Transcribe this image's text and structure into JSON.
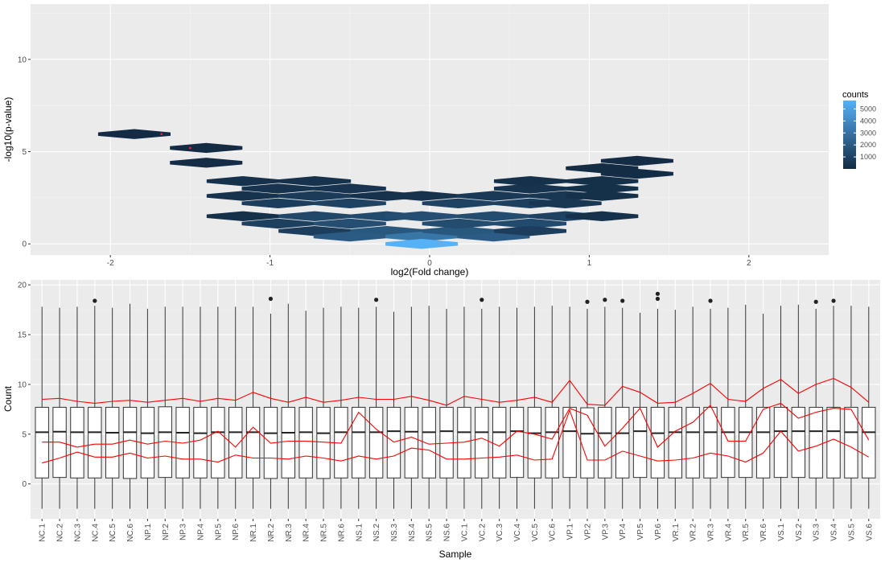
{
  "chart_data": [
    {
      "type": "heatmap",
      "xlabel": "log2(Fold change)",
      "ylabel": "-log10(p-value)",
      "xlim": [
        -2.5,
        2.5
      ],
      "ylim": [
        -0.6,
        13
      ],
      "x_ticks": [
        -2,
        -1,
        0,
        1,
        2
      ],
      "y_ticks": [
        0,
        5,
        10
      ],
      "grid": true,
      "legend": {
        "title": "counts",
        "position": "right",
        "breaks": [
          1000,
          2000,
          3000,
          4000,
          5000
        ],
        "colors": {
          "low": "#132b43",
          "high": "#56b1f7"
        },
        "range": [
          1,
          5700
        ]
      },
      "hex_cells": [
        {
          "x": -1.85,
          "y": 5.95,
          "count": 20
        },
        {
          "x": -1.4,
          "y": 5.2,
          "count": 40
        },
        {
          "x": -1.4,
          "y": 4.4,
          "count": 60
        },
        {
          "x": -1.17,
          "y": 3.4,
          "count": 250
        },
        {
          "x": -0.95,
          "y": 3.0,
          "count": 350
        },
        {
          "x": -0.72,
          "y": 3.4,
          "count": 300
        },
        {
          "x": -0.5,
          "y": 3.0,
          "count": 400
        },
        {
          "x": -1.17,
          "y": 2.6,
          "count": 300
        },
        {
          "x": -0.72,
          "y": 2.6,
          "count": 700
        },
        {
          "x": -0.27,
          "y": 2.6,
          "count": 250
        },
        {
          "x": -0.95,
          "y": 2.2,
          "count": 800
        },
        {
          "x": -0.5,
          "y": 2.2,
          "count": 1000
        },
        {
          "x": -1.17,
          "y": 1.5,
          "count": 200
        },
        {
          "x": -0.72,
          "y": 1.5,
          "count": 1200
        },
        {
          "x": -0.27,
          "y": 1.5,
          "count": 1300
        },
        {
          "x": -0.95,
          "y": 1.1,
          "count": 900
        },
        {
          "x": -0.5,
          "y": 1.1,
          "count": 1500
        },
        {
          "x": -0.72,
          "y": 0.7,
          "count": 800
        },
        {
          "x": -0.27,
          "y": 0.7,
          "count": 1900
        },
        {
          "x": -0.5,
          "y": 0.4,
          "count": 2000
        },
        {
          "x": -0.05,
          "y": 0.4,
          "count": 3200
        },
        {
          "x": 0.4,
          "y": 0.4,
          "count": 2100
        },
        {
          "x": 0.18,
          "y": 0.7,
          "count": 1900
        },
        {
          "x": -0.05,
          "y": 0.0,
          "count": 5700
        },
        {
          "x": 0.18,
          "y": 1.1,
          "count": 1400
        },
        {
          "x": 0.63,
          "y": 1.1,
          "count": 1300
        },
        {
          "x": -0.05,
          "y": 1.5,
          "count": 1500
        },
        {
          "x": 0.4,
          "y": 1.5,
          "count": 1400
        },
        {
          "x": 0.85,
          "y": 1.5,
          "count": 1000
        },
        {
          "x": 1.08,
          "y": 1.5,
          "count": 250
        },
        {
          "x": 0.63,
          "y": 0.7,
          "count": 800
        },
        {
          "x": 0.18,
          "y": 2.2,
          "count": 1000
        },
        {
          "x": 0.63,
          "y": 2.2,
          "count": 900
        },
        {
          "x": 0.85,
          "y": 2.2,
          "count": 500
        },
        {
          "x": -0.05,
          "y": 2.6,
          "count": 300
        },
        {
          "x": 0.4,
          "y": 2.6,
          "count": 600
        },
        {
          "x": 0.85,
          "y": 2.6,
          "count": 500
        },
        {
          "x": 1.08,
          "y": 2.6,
          "count": 200
        },
        {
          "x": 0.63,
          "y": 3.0,
          "count": 350
        },
        {
          "x": 1.08,
          "y": 3.0,
          "count": 200
        },
        {
          "x": 0.63,
          "y": 3.4,
          "count": 250
        },
        {
          "x": 1.08,
          "y": 3.4,
          "count": 200
        },
        {
          "x": 1.3,
          "y": 3.8,
          "count": 100
        },
        {
          "x": 1.08,
          "y": 4.1,
          "count": 80
        },
        {
          "x": 1.3,
          "y": 4.5,
          "count": 60
        }
      ],
      "highlight_points": [
        {
          "x": -1.68,
          "y": 5.95
        },
        {
          "x": -1.5,
          "y": 5.2
        }
      ]
    },
    {
      "type": "box",
      "xlabel": "Sample",
      "ylabel": "Count",
      "ylim": [
        -3.5,
        20.5
      ],
      "y_ticks": [
        0,
        5,
        10,
        15,
        20
      ],
      "grid": true,
      "categories": [
        "NC.1",
        "NC.2",
        "NC.3",
        "NC.4",
        "NC.5",
        "NC.6",
        "NP.1",
        "NP.2",
        "NP.3",
        "NP.4",
        "NP.5",
        "NP.6",
        "NR.1",
        "NR.2",
        "NR.3",
        "NR.4",
        "NR.5",
        "NR.6",
        "NS.1",
        "NS.2",
        "NS.3",
        "NS.4",
        "NS.5",
        "NS.6",
        "VC.1",
        "VC.2",
        "VC.3",
        "VC.4",
        "VC.5",
        "VC.6",
        "VP.1",
        "VP.2",
        "VP.3",
        "VP.4",
        "VP.5",
        "VP.6",
        "VR.1",
        "VR.2",
        "VR.3",
        "VR.4",
        "VR.5",
        "VR.6",
        "VS.1",
        "VS.2",
        "VS.3",
        "VS.4",
        "VS.5",
        "VS.6"
      ],
      "box": {
        "median": [
          5.2,
          5.25,
          5.2,
          5.2,
          5.15,
          5.2,
          5.1,
          5.2,
          5.15,
          5.1,
          5.2,
          5.2,
          5.2,
          5.1,
          5.15,
          5.2,
          5.1,
          5.2,
          5.2,
          5.2,
          5.3,
          5.25,
          5.2,
          5.3,
          5.2,
          5.2,
          5.2,
          5.3,
          5.1,
          5.2,
          5.3,
          5.05,
          5.1,
          5.1,
          5.3,
          5.1,
          5.2,
          5.2,
          5.2,
          5.2,
          5.2,
          5.2,
          5.3,
          5.3,
          5.3,
          5.3,
          5.2,
          5.2
        ],
        "q1": [
          0.6,
          0.65,
          0.6,
          0.6,
          0.6,
          0.55,
          0.6,
          0.65,
          0.6,
          0.6,
          0.6,
          0.6,
          0.6,
          0.55,
          0.6,
          0.6,
          0.55,
          0.6,
          0.6,
          0.6,
          0.6,
          0.6,
          0.6,
          0.6,
          0.6,
          0.6,
          0.6,
          0.65,
          0.6,
          0.6,
          0.65,
          0.6,
          0.6,
          0.6,
          0.65,
          0.6,
          0.6,
          0.6,
          0.6,
          0.65,
          0.65,
          0.6,
          0.65,
          0.65,
          0.6,
          0.6,
          0.6,
          0.6
        ],
        "q3": [
          7.7,
          7.7,
          7.7,
          7.7,
          7.7,
          7.7,
          7.7,
          7.75,
          7.7,
          7.7,
          7.7,
          7.7,
          7.7,
          7.7,
          7.7,
          7.7,
          7.7,
          7.7,
          7.7,
          7.7,
          7.7,
          7.7,
          7.7,
          7.7,
          7.7,
          7.7,
          7.7,
          7.7,
          7.7,
          7.7,
          7.7,
          7.65,
          7.7,
          7.7,
          7.7,
          7.7,
          7.7,
          7.7,
          7.7,
          7.7,
          7.7,
          7.7,
          7.7,
          7.7,
          7.7,
          7.7,
          7.7,
          7.7
        ],
        "whisker_low": [
          -2.5,
          -2.5,
          -2.5,
          -2.5,
          -2.5,
          -2.5,
          -2.5,
          -2.5,
          -2.5,
          -2.5,
          -2.5,
          -2.5,
          -2.5,
          -2.5,
          -2.5,
          -2.5,
          -2.5,
          -2.5,
          -2.5,
          -2.5,
          -2.5,
          -2.5,
          -2.5,
          -2.5,
          -2.5,
          -2.5,
          -2.5,
          -2.5,
          -2.5,
          -2.5,
          -2.5,
          -2.5,
          -2.5,
          -2.5,
          -2.5,
          -2.5,
          -2.5,
          -2.5,
          -2.5,
          -2.5,
          -2.5,
          -2.5,
          -2.5,
          -2.5,
          -2.5,
          -2.5,
          -2.5,
          -2.5
        ],
        "whisker_high": [
          17.8,
          17.7,
          17.8,
          17.9,
          17.7,
          18.1,
          17.6,
          17.8,
          17.8,
          17.8,
          17.8,
          17.8,
          17.8,
          17.1,
          18.1,
          17.4,
          17.7,
          17.8,
          17.7,
          17.8,
          17.3,
          17.8,
          17.9,
          17.6,
          17.8,
          17.6,
          17.8,
          17.7,
          17.8,
          17.9,
          17.8,
          17.6,
          17.8,
          17.7,
          17.2,
          17.6,
          17.5,
          17.8,
          17.6,
          17.7,
          18.0,
          17.1,
          17.9,
          18.0,
          17.6,
          17.9,
          17.9,
          17.8
        ]
      },
      "outliers": [
        {
          "category": "NC.4",
          "y": 18.4
        },
        {
          "category": "NR.2",
          "y": 18.6
        },
        {
          "category": "NS.2",
          "y": 18.5
        },
        {
          "category": "VC.2",
          "y": 18.5
        },
        {
          "category": "VP.2",
          "y": 18.3
        },
        {
          "category": "VP.3",
          "y": 18.5
        },
        {
          "category": "VP.4",
          "y": 18.4
        },
        {
          "category": "VP.6",
          "y": 18.6
        },
        {
          "category": "VP.6",
          "y": 19.1
        },
        {
          "category": "VR.3",
          "y": 18.4
        },
        {
          "category": "VS.3",
          "y": 18.3
        },
        {
          "category": "VS.4",
          "y": 18.4
        }
      ],
      "line_color": "#ff0000",
      "lines": [
        [
          8.5,
          8.6,
          8.3,
          8.1,
          8.3,
          8.4,
          8.2,
          8.4,
          8.6,
          8.3,
          8.6,
          8.4,
          9.2,
          8.6,
          8.2,
          8.7,
          8.2,
          8.4,
          8.7,
          8.5,
          8.5,
          8.8,
          8.4,
          7.9,
          8.8,
          8.5,
          8.2,
          8.4,
          8.7,
          8.2,
          10.4,
          8.0,
          7.9,
          9.8,
          9.2,
          8.1,
          8.2,
          9.1,
          10.1,
          8.5,
          8.3,
          9.6,
          10.5,
          9.1,
          10.0,
          10.6,
          9.7,
          8.2
        ],
        [
          4.2,
          4.2,
          3.7,
          4.0,
          4.0,
          4.4,
          4.0,
          4.3,
          4.1,
          4.4,
          5.3,
          3.7,
          5.7,
          4.1,
          4.3,
          4.3,
          4.2,
          4.1,
          7.2,
          5.5,
          4.2,
          4.7,
          4.0,
          4.1,
          4.2,
          4.6,
          3.8,
          5.3,
          5.0,
          4.5,
          7.6,
          6.9,
          3.8,
          5.6,
          7.6,
          3.7,
          5.3,
          6.2,
          7.9,
          4.3,
          4.3,
          7.5,
          8.1,
          6.6,
          7.2,
          7.6,
          7.5,
          4.4
        ],
        [
          2.1,
          2.6,
          3.2,
          2.7,
          2.7,
          3.1,
          2.6,
          2.8,
          2.5,
          2.5,
          2.2,
          2.9,
          2.6,
          2.6,
          2.5,
          2.8,
          2.6,
          2.3,
          2.8,
          2.5,
          2.8,
          3.6,
          3.4,
          2.5,
          2.5,
          2.6,
          2.7,
          2.9,
          2.4,
          2.5,
          7.4,
          2.4,
          2.4,
          3.3,
          2.8,
          2.3,
          2.4,
          2.6,
          3.1,
          2.8,
          2.2,
          3.1,
          5.3,
          3.3,
          3.8,
          4.5,
          3.7,
          2.7
        ]
      ]
    }
  ]
}
